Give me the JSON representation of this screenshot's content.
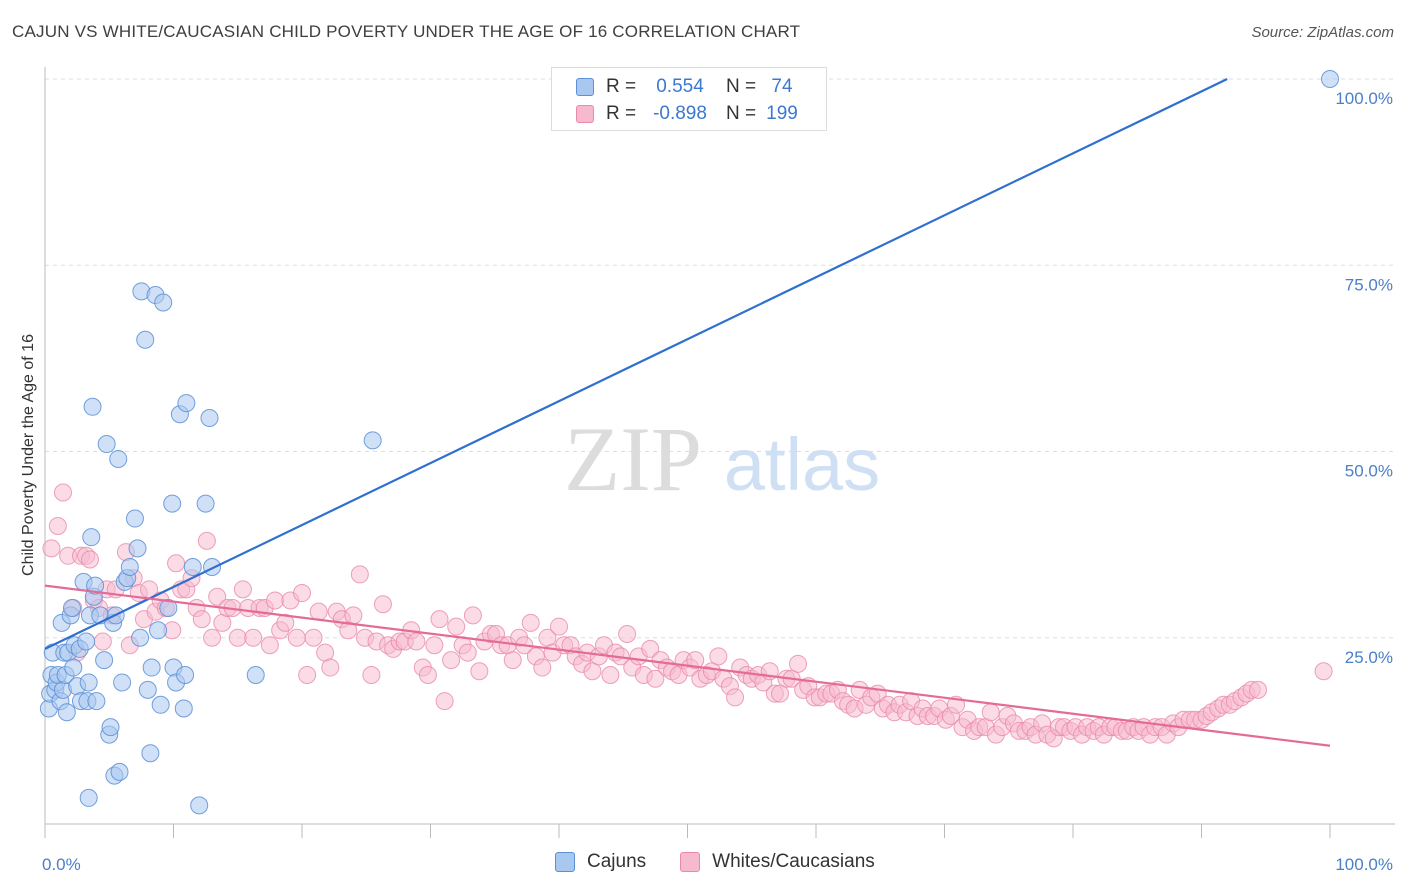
{
  "title": "CAJUN VS WHITE/CAUCASIAN CHILD POVERTY UNDER THE AGE OF 16 CORRELATION CHART",
  "source": "Source: ZipAtlas.com",
  "watermark": {
    "zip": "ZIP",
    "atlas": "atlas"
  },
  "colors": {
    "blue_fill": "#a9c8f0",
    "blue_stroke": "#5b8fd6",
    "blue_line": "#2f6fcf",
    "pink_fill": "#f7b9cd",
    "pink_stroke": "#e98aa9",
    "pink_line": "#e46a97",
    "accent_text": "#3b78d0"
  },
  "legend": {
    "rows": [
      {
        "r_label": "R =",
        "r_value": "0.554",
        "n_label": "N =",
        "n_value": "74"
      },
      {
        "r_label": "R =",
        "r_value": "-0.898",
        "n_label": "N =",
        "n_value": "199"
      }
    ]
  },
  "bottom_legend": {
    "items": [
      "Cajuns",
      "Whites/Caucasians"
    ]
  },
  "chart_data": {
    "type": "scatter",
    "title": "CAJUN VS WHITE/CAUCASIAN CHILD POVERTY UNDER THE AGE OF 16 CORRELATION CHART",
    "xlabel": "",
    "ylabel": "Child Poverty Under the Age of 16",
    "xlim": [
      0,
      100
    ],
    "ylim": [
      0,
      100
    ],
    "x_tick_labels": [
      "0.0%",
      "100.0%"
    ],
    "y_tick_labels": [
      "100.0%",
      "75.0%",
      "50.0%",
      "25.0%"
    ],
    "y_tick_values": [
      100,
      75,
      50,
      25
    ],
    "grid": true,
    "series": [
      {
        "name": "Cajuns",
        "r": 0.554,
        "n": 74,
        "trend": {
          "x": [
            0,
            92
          ],
          "y": [
            23.5,
            100
          ]
        },
        "points": [
          [
            0.3,
            15.5
          ],
          [
            0.4,
            17.5
          ],
          [
            0.5,
            20
          ],
          [
            0.6,
            23
          ],
          [
            0.8,
            18
          ],
          [
            0.9,
            19
          ],
          [
            1,
            20
          ],
          [
            1.2,
            16.5
          ],
          [
            1.3,
            27
          ],
          [
            1.4,
            18
          ],
          [
            1.5,
            23
          ],
          [
            1.6,
            20
          ],
          [
            1.7,
            15
          ],
          [
            1.8,
            23
          ],
          [
            2,
            28
          ],
          [
            2.1,
            29
          ],
          [
            2.2,
            21
          ],
          [
            2.3,
            24
          ],
          [
            2.5,
            18.5
          ],
          [
            2.7,
            23.5
          ],
          [
            2.8,
            16.5
          ],
          [
            3,
            32.5
          ],
          [
            3.2,
            24.5
          ],
          [
            3.3,
            16.5
          ],
          [
            3.4,
            19
          ],
          [
            3.5,
            28
          ],
          [
            3.6,
            38.5
          ],
          [
            3.7,
            56
          ],
          [
            3.8,
            30.5
          ],
          [
            3.9,
            32
          ],
          [
            4,
            16.5
          ],
          [
            4.3,
            28
          ],
          [
            4.6,
            22
          ],
          [
            4.8,
            51
          ],
          [
            5,
            12
          ],
          [
            5.1,
            13
          ],
          [
            5.3,
            27
          ],
          [
            5.4,
            6.5
          ],
          [
            5.5,
            28
          ],
          [
            5.7,
            49
          ],
          [
            5.8,
            7
          ],
          [
            6,
            19
          ],
          [
            6.2,
            32.5
          ],
          [
            6.4,
            33
          ],
          [
            6.6,
            34.5
          ],
          [
            7,
            41
          ],
          [
            7.2,
            37
          ],
          [
            7.4,
            25
          ],
          [
            7.5,
            71.5
          ],
          [
            7.8,
            65
          ],
          [
            8,
            18
          ],
          [
            8.2,
            9.5
          ],
          [
            8.3,
            21
          ],
          [
            8.6,
            71
          ],
          [
            8.8,
            26
          ],
          [
            9,
            16
          ],
          [
            9.2,
            70
          ],
          [
            9.6,
            29
          ],
          [
            9.9,
            43
          ],
          [
            10,
            21
          ],
          [
            10.2,
            19
          ],
          [
            10.5,
            55
          ],
          [
            10.8,
            15.5
          ],
          [
            10.9,
            20
          ],
          [
            11,
            56.5
          ],
          [
            11.5,
            34.5
          ],
          [
            12,
            2.5
          ],
          [
            12.5,
            43
          ],
          [
            12.8,
            54.5
          ],
          [
            13,
            34.5
          ],
          [
            3.4,
            3.5
          ],
          [
            16.4,
            20
          ],
          [
            25.5,
            51.5
          ],
          [
            100,
            100
          ]
        ]
      },
      {
        "name": "Whites/Caucasians",
        "r": -0.898,
        "n": 199,
        "trend": {
          "x": [
            0,
            100
          ],
          "y": [
            32,
            10.5
          ]
        },
        "points": [
          [
            0.5,
            37
          ],
          [
            1,
            40
          ],
          [
            1.4,
            44.5
          ],
          [
            1.8,
            36
          ],
          [
            2.2,
            29
          ],
          [
            2.5,
            23
          ],
          [
            2.8,
            36
          ],
          [
            3.2,
            36
          ],
          [
            3.5,
            35.5
          ],
          [
            3.8,
            30
          ],
          [
            4.2,
            29
          ],
          [
            4.5,
            24.5
          ],
          [
            4.8,
            31.5
          ],
          [
            5.2,
            28
          ],
          [
            5.5,
            31.5
          ],
          [
            6.3,
            36.5
          ],
          [
            6.6,
            24
          ],
          [
            6.9,
            33
          ],
          [
            7.3,
            31
          ],
          [
            7.7,
            27.5
          ],
          [
            8.1,
            31.5
          ],
          [
            8.6,
            28.5
          ],
          [
            9,
            30
          ],
          [
            9.4,
            29
          ],
          [
            9.9,
            26
          ],
          [
            10.2,
            35
          ],
          [
            10.6,
            31.5
          ],
          [
            11,
            31.5
          ],
          [
            11.4,
            33
          ],
          [
            11.8,
            29
          ],
          [
            12.2,
            27.5
          ],
          [
            12.6,
            38
          ],
          [
            13,
            25
          ],
          [
            13.4,
            30.5
          ],
          [
            13.8,
            27
          ],
          [
            14.2,
            29
          ],
          [
            14.6,
            29
          ],
          [
            15,
            25
          ],
          [
            15.4,
            31.5
          ],
          [
            15.8,
            29
          ],
          [
            16.2,
            25
          ],
          [
            16.7,
            29
          ],
          [
            17.1,
            29
          ],
          [
            17.5,
            24
          ],
          [
            17.9,
            30
          ],
          [
            18.3,
            26
          ],
          [
            18.7,
            27
          ],
          [
            19.1,
            30
          ],
          [
            19.6,
            25
          ],
          [
            20,
            31
          ],
          [
            20.4,
            20
          ],
          [
            20.9,
            25
          ],
          [
            21.3,
            28.5
          ],
          [
            21.8,
            23
          ],
          [
            22.2,
            21
          ],
          [
            22.7,
            28.5
          ],
          [
            23.1,
            27.5
          ],
          [
            23.6,
            26
          ],
          [
            24,
            28
          ],
          [
            24.5,
            33.5
          ],
          [
            24.9,
            25
          ],
          [
            25.4,
            20
          ],
          [
            25.8,
            24.5
          ],
          [
            26.3,
            29.5
          ],
          [
            26.7,
            24
          ],
          [
            27.1,
            23.5
          ],
          [
            27.6,
            24.5
          ],
          [
            28,
            24.5
          ],
          [
            28.5,
            26
          ],
          [
            28.9,
            24.5
          ],
          [
            29.4,
            21
          ],
          [
            29.8,
            20
          ],
          [
            30.3,
            24
          ],
          [
            30.7,
            27.5
          ],
          [
            31.1,
            16.5
          ],
          [
            31.6,
            22
          ],
          [
            32,
            26.5
          ],
          [
            32.5,
            24
          ],
          [
            32.9,
            23
          ],
          [
            33.3,
            28
          ],
          [
            33.8,
            20.5
          ],
          [
            34.2,
            24.5
          ],
          [
            34.7,
            25.5
          ],
          [
            35.1,
            25.5
          ],
          [
            35.5,
            24
          ],
          [
            36,
            24
          ],
          [
            36.4,
            22
          ],
          [
            36.9,
            25
          ],
          [
            37.3,
            24
          ],
          [
            37.8,
            27
          ],
          [
            38.2,
            22.5
          ],
          [
            38.7,
            21
          ],
          [
            39.1,
            25
          ],
          [
            39.5,
            23
          ],
          [
            40,
            26.5
          ],
          [
            40.4,
            24
          ],
          [
            40.9,
            24
          ],
          [
            41.3,
            22.5
          ],
          [
            41.8,
            21.5
          ],
          [
            42.2,
            23
          ],
          [
            42.6,
            20.5
          ],
          [
            43.1,
            22.5
          ],
          [
            43.5,
            24
          ],
          [
            44,
            20
          ],
          [
            44.4,
            23
          ],
          [
            44.8,
            22.5
          ],
          [
            45.3,
            25.5
          ],
          [
            45.7,
            21
          ],
          [
            46.2,
            22.5
          ],
          [
            46.6,
            20
          ],
          [
            47.1,
            23.5
          ],
          [
            47.5,
            19.5
          ],
          [
            47.9,
            22
          ],
          [
            48.4,
            21
          ],
          [
            48.8,
            20.5
          ],
          [
            49.3,
            20
          ],
          [
            49.7,
            22
          ],
          [
            50.2,
            21
          ],
          [
            50.6,
            22
          ],
          [
            51,
            19.5
          ],
          [
            51.5,
            20
          ],
          [
            51.9,
            20.5
          ],
          [
            52.4,
            22.5
          ],
          [
            52.8,
            19.5
          ],
          [
            53.3,
            18.5
          ],
          [
            53.7,
            17
          ],
          [
            54.1,
            21
          ],
          [
            54.6,
            20
          ],
          [
            55,
            19.5
          ],
          [
            55.5,
            20
          ],
          [
            55.9,
            19
          ],
          [
            56.4,
            20.5
          ],
          [
            56.8,
            17.5
          ],
          [
            57.2,
            17.5
          ],
          [
            57.7,
            19.5
          ],
          [
            58.1,
            19.5
          ],
          [
            58.6,
            21.5
          ],
          [
            59,
            18
          ],
          [
            59.4,
            18.5
          ],
          [
            59.9,
            17
          ],
          [
            60.3,
            17
          ],
          [
            60.8,
            17.5
          ],
          [
            61.2,
            17.5
          ],
          [
            61.7,
            18
          ],
          [
            62.1,
            16.5
          ],
          [
            62.5,
            16
          ],
          [
            63,
            15.5
          ],
          [
            63.4,
            18
          ],
          [
            63.9,
            16
          ],
          [
            64.3,
            17
          ],
          [
            64.8,
            17.5
          ],
          [
            65.2,
            15.5
          ],
          [
            65.6,
            16
          ],
          [
            66.1,
            15
          ],
          [
            66.5,
            16
          ],
          [
            67,
            15
          ],
          [
            67.4,
            16.5
          ],
          [
            67.9,
            14.5
          ],
          [
            68.3,
            15.5
          ],
          [
            68.7,
            14.5
          ],
          [
            69.2,
            14.5
          ],
          [
            69.6,
            15.5
          ],
          [
            70.1,
            14
          ],
          [
            70.5,
            14.5
          ],
          [
            70.9,
            16
          ],
          [
            71.4,
            13
          ],
          [
            71.8,
            14
          ],
          [
            72.3,
            12.5
          ],
          [
            72.7,
            13
          ],
          [
            73.2,
            13
          ],
          [
            73.6,
            15
          ],
          [
            74,
            12
          ],
          [
            74.5,
            13
          ],
          [
            74.9,
            14.5
          ],
          [
            75.4,
            13.5
          ],
          [
            75.8,
            12.5
          ],
          [
            76.3,
            12.5
          ],
          [
            76.7,
            13
          ],
          [
            77.1,
            12
          ],
          [
            77.6,
            13.5
          ],
          [
            78,
            12
          ],
          [
            78.5,
            11.5
          ],
          [
            78.9,
            13
          ],
          [
            79.3,
            13
          ],
          [
            79.8,
            12.5
          ],
          [
            80.2,
            13
          ],
          [
            80.7,
            12
          ],
          [
            81.1,
            13
          ],
          [
            81.6,
            12.5
          ],
          [
            82,
            13
          ],
          [
            82.4,
            12
          ],
          [
            82.9,
            13
          ],
          [
            83.3,
            13
          ],
          [
            83.8,
            12.5
          ],
          [
            84.2,
            12.5
          ],
          [
            84.7,
            13
          ],
          [
            85.1,
            12.5
          ],
          [
            85.5,
            13
          ],
          [
            86,
            12
          ],
          [
            86.4,
            13
          ],
          [
            86.9,
            13
          ],
          [
            87.3,
            12
          ],
          [
            87.8,
            13.5
          ],
          [
            88.2,
            13
          ],
          [
            88.6,
            14
          ],
          [
            89.1,
            14
          ],
          [
            89.5,
            14
          ],
          [
            90,
            14
          ],
          [
            90.4,
            14.5
          ],
          [
            90.8,
            15
          ],
          [
            91.3,
            15.5
          ],
          [
            91.7,
            16
          ],
          [
            92.2,
            16
          ],
          [
            92.6,
            16.5
          ],
          [
            93.1,
            17
          ],
          [
            93.5,
            17.5
          ],
          [
            93.9,
            18
          ],
          [
            94.4,
            18
          ],
          [
            99.5,
            20.5
          ]
        ]
      }
    ]
  }
}
